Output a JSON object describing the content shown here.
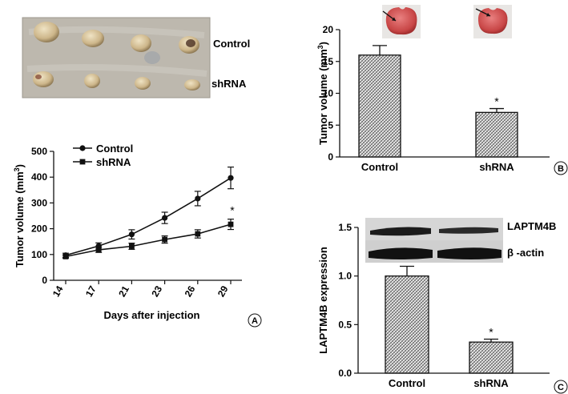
{
  "photo_labels": {
    "row1": "Control",
    "row2": "shRNA"
  },
  "colors": {
    "line": "#111111",
    "photo_bg": "#b9b4ab",
    "tumor": "#d6c39c",
    "lung": "#d96060"
  },
  "chart_data": [
    {
      "panel": "A",
      "type": "line",
      "x": [
        14,
        17,
        21,
        23,
        26,
        29
      ],
      "xlabel": "Days after injection",
      "ylabel": "Tumor volume (mm3)",
      "ylim": [
        0,
        500
      ],
      "yticks": [
        0,
        100,
        200,
        300,
        400,
        500
      ],
      "series": [
        {
          "name": "Control",
          "marker": "circle",
          "values": [
            97,
            133,
            178,
            242,
            317,
            397
          ],
          "errors": [
            8,
            12,
            18,
            22,
            28,
            42
          ]
        },
        {
          "name": "shRNA",
          "marker": "square",
          "values": [
            92,
            118,
            132,
            158,
            180,
            217
          ],
          "errors": [
            6,
            10,
            12,
            14,
            16,
            20
          ]
        }
      ],
      "annotation": "*",
      "legend": "top-left",
      "grid": false
    },
    {
      "panel": "B",
      "type": "bar",
      "categories": [
        "Control",
        "shRNA"
      ],
      "values": [
        16.0,
        7.0
      ],
      "errors": [
        1.5,
        0.6
      ],
      "ylabel": "Tumor volume (mm3)",
      "ylim": [
        0,
        20
      ],
      "yticks": [
        0,
        5,
        10,
        15,
        20
      ],
      "annotation": "*",
      "grid": false
    },
    {
      "panel": "C",
      "type": "bar",
      "categories": [
        "Control",
        "shRNA"
      ],
      "values": [
        1.0,
        0.32
      ],
      "errors": [
        0.1,
        0.03
      ],
      "ylabel": "LAPTM4B expression",
      "ylim": [
        0,
        1.5
      ],
      "yticks": [
        "0.0",
        "0.5",
        "1.0",
        "1.5"
      ],
      "blot_labels": [
        "LAPTM4B",
        "β -actin"
      ],
      "annotation": "*",
      "grid": false
    }
  ]
}
